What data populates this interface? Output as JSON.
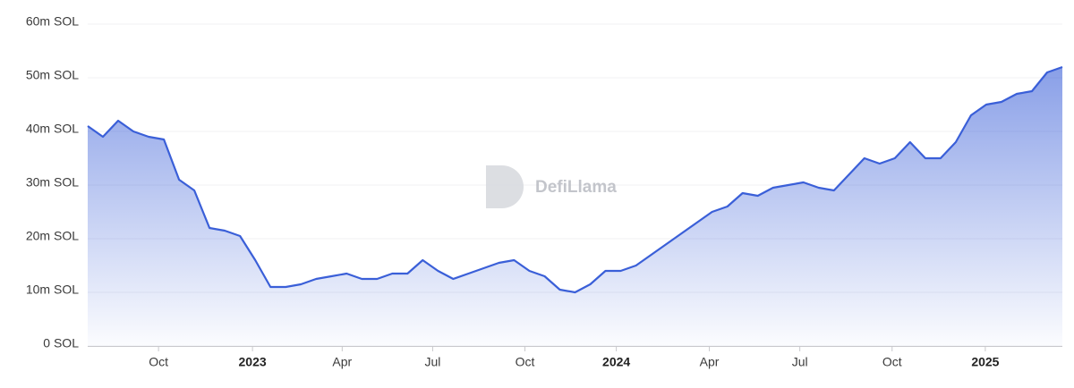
{
  "chart_data": {
    "type": "area",
    "watermark": "DefiLlama",
    "series": [
      {
        "color": "#3a5fd8",
        "values": [
          41000000,
          39000000,
          42000000,
          40000000,
          39000000,
          38500000,
          31000000,
          29000000,
          22000000,
          21500000,
          20500000,
          16000000,
          11000000,
          11000000,
          11500000,
          12500000,
          13000000,
          13500000,
          12500000,
          12500000,
          13500000,
          13500000,
          16000000,
          14000000,
          12500000,
          13500000,
          14500000,
          15500000,
          16000000,
          14000000,
          13000000,
          10500000,
          10000000,
          11500000,
          14000000,
          14000000,
          15000000,
          17000000,
          19000000,
          21000000,
          23000000,
          25000000,
          26000000,
          28500000,
          28000000,
          29500000,
          30000000,
          30500000,
          29500000,
          29000000,
          32000000,
          35000000,
          34000000,
          35000000,
          38000000,
          35000000,
          35000000,
          38000000,
          43000000,
          45000000,
          45500000,
          47000000,
          47500000,
          51000000,
          52000000
        ]
      }
    ],
    "xlim": [
      0,
      64
    ],
    "xticks": [
      {
        "value": 4.65,
        "label": "Oct"
      },
      {
        "value": 10.82,
        "label": "2023"
      },
      {
        "value": 16.71,
        "label": "Apr"
      },
      {
        "value": 22.65,
        "label": "Jul"
      },
      {
        "value": 28.71,
        "label": "Oct"
      },
      {
        "value": 34.71,
        "label": "2024"
      },
      {
        "value": 40.82,
        "label": "Apr"
      },
      {
        "value": 46.76,
        "label": "Jul"
      },
      {
        "value": 52.82,
        "label": "Oct"
      },
      {
        "value": 58.94,
        "label": "2025"
      }
    ],
    "ylim": [
      0,
      60000000
    ],
    "yticks": [
      {
        "value": 0,
        "label": "0 SOL"
      },
      {
        "value": 10000000,
        "label": "10m SOL"
      },
      {
        "value": 20000000,
        "label": "20m SOL"
      },
      {
        "value": 30000000,
        "label": "30m SOL"
      },
      {
        "value": 40000000,
        "label": "40m SOL"
      },
      {
        "value": 50000000,
        "label": "50m SOL"
      },
      {
        "value": 60000000,
        "label": "60m SOL"
      }
    ],
    "grid": true
  }
}
